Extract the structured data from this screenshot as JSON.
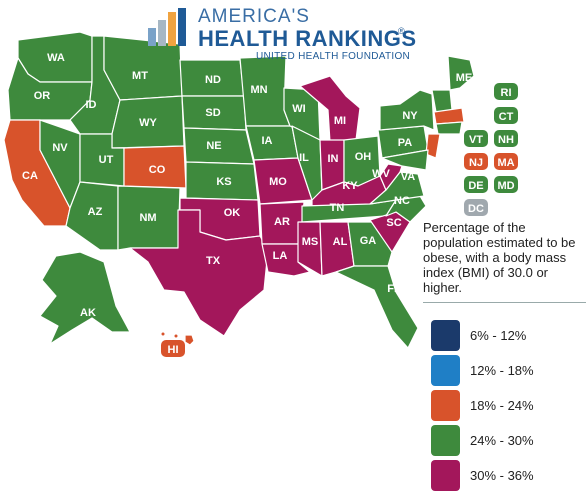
{
  "logo": {
    "line1": "AMERICA'S",
    "line2": "HEALTH RANKINGS",
    "line3": "UNITED HEALTH FOUNDATION",
    "registered": "®"
  },
  "description": "Percentage of the population estimated to be obese, with a body mass index (BMI) of 30.0 or higher.",
  "legend": [
    {
      "label": "6% - 12%",
      "color": "#1b3a6b"
    },
    {
      "label": "12% - 18%",
      "color": "#1f7fc6"
    },
    {
      "label": "18% - 24%",
      "color": "#d8532b"
    },
    {
      "label": "24% - 30%",
      "color": "#3e8a3d"
    },
    {
      "label": "30% - 36%",
      "color": "#a3175b"
    }
  ],
  "colors": {
    "green": "#3e8a3d",
    "orange": "#d8532b",
    "purple": "#a3175b",
    "gray": "#a0a8ae",
    "border": "#ffffff"
  },
  "states": {
    "WA": "WA",
    "OR": "OR",
    "CA": "CA",
    "ID": "ID",
    "NV": "NV",
    "MT": "MT",
    "WY": "WY",
    "UT": "UT",
    "AZ": "AZ",
    "CO": "CO",
    "NM": "NM",
    "ND": "ND",
    "SD": "SD",
    "NE": "NE",
    "KS": "KS",
    "OK": "OK",
    "TX": "TX",
    "MN": "MN",
    "IA": "IA",
    "MO": "MO",
    "AR": "AR",
    "LA": "LA",
    "WI": "WI",
    "IL": "IL",
    "MI": "MI",
    "IN": "IN",
    "OH": "OH",
    "KY": "KY",
    "TN": "TN",
    "MS": "MS",
    "AL": "AL",
    "GA": "GA",
    "FL": "FL",
    "SC": "SC",
    "NC": "NC",
    "VA": "VA",
    "WV": "WV",
    "PA": "PA",
    "NY": "NY",
    "ME": "ME",
    "AK": "AK",
    "HI": "HI",
    "RI": "RI",
    "CT": "CT",
    "VT": "VT",
    "NH": "NH",
    "NJ": "NJ",
    "MA": "MA",
    "DE": "DE",
    "MD": "MD",
    "DC": "DC"
  }
}
